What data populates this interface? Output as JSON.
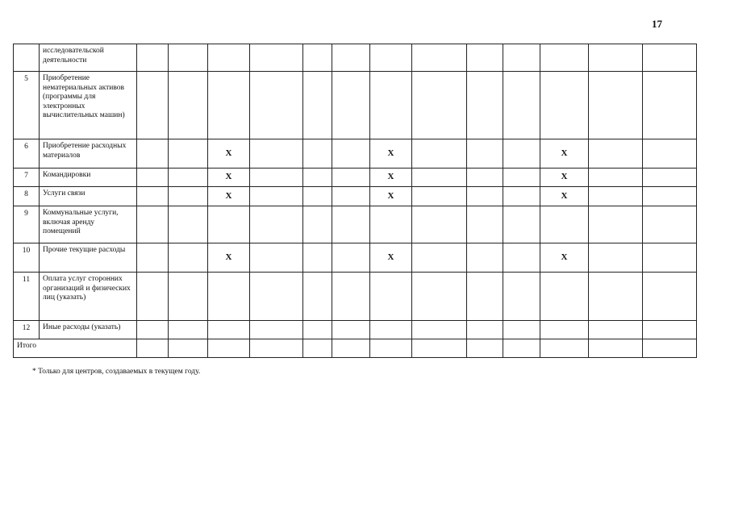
{
  "page_number": "17",
  "mark": "X",
  "rows": [
    {
      "num": "",
      "label": "исследовательской деятельности",
      "marked": false
    },
    {
      "num": "5",
      "label": "Приобретение нематериальных активов (программы для электронных вычислительных машин)",
      "marked": false
    },
    {
      "num": "6",
      "label": "Приобретение расходных материалов",
      "marked": true
    },
    {
      "num": "7",
      "label": "Командировки",
      "marked": true
    },
    {
      "num": "8",
      "label": "Услуги связи",
      "marked": true
    },
    {
      "num": "9",
      "label": "Коммунальные услуги, включая аренду помещений",
      "marked": false
    },
    {
      "num": "10",
      "label": "Прочие текущие расходы",
      "marked": true
    },
    {
      "num": "11",
      "label": "Оплата услуг сторонних организаций и физических лиц (указать)",
      "marked": false
    },
    {
      "num": "12",
      "label": "Иные расходы (указать)",
      "marked": false
    }
  ],
  "total_label": "Итого",
  "footnote": "* Только для центров, создаваемых в текущем году."
}
